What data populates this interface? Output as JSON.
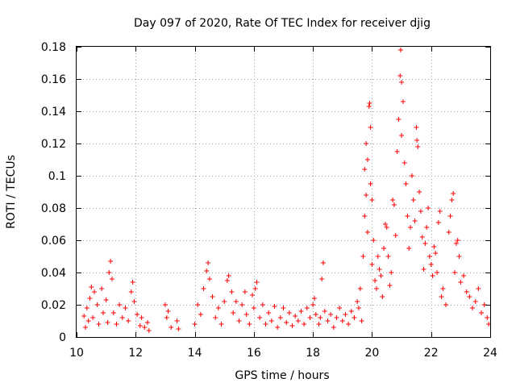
{
  "chart_data": {
    "type": "scatter",
    "title": "Day 097 of 2020, Rate Of TEC Index for receiver djig",
    "xlabel": "GPS time / hours",
    "ylabel": "ROTI / TECUs",
    "xlim": [
      10,
      24
    ],
    "ylim": [
      0,
      0.18
    ],
    "grid": true,
    "marker": "+",
    "x_ticks": [
      10,
      12,
      14,
      16,
      18,
      20,
      22,
      24
    ],
    "x_tick_labels": [
      "10",
      "12",
      "14",
      "16",
      "18",
      "20",
      "22",
      "24"
    ],
    "y_ticks": [
      0,
      0.02,
      0.04,
      0.06,
      0.08,
      0.1,
      0.12,
      0.14,
      0.16,
      0.18
    ],
    "y_tick_labels": [
      "0",
      "0.02",
      "0.04",
      "0.06",
      "0.08",
      "0.1",
      "0.12",
      "0.14",
      "0.16",
      "0.18"
    ],
    "series": [
      {
        "name": "ROTI",
        "color": "#ff0000",
        "points": [
          [
            10.25,
            0.013
          ],
          [
            10.3,
            0.006
          ],
          [
            10.35,
            0.018
          ],
          [
            10.4,
            0.01
          ],
          [
            10.45,
            0.024
          ],
          [
            10.5,
            0.031
          ],
          [
            10.55,
            0.012
          ],
          [
            10.6,
            0.028
          ],
          [
            10.7,
            0.02
          ],
          [
            10.75,
            0.008
          ],
          [
            10.85,
            0.03
          ],
          [
            10.9,
            0.015
          ],
          [
            11.0,
            0.023
          ],
          [
            11.05,
            0.009
          ],
          [
            11.1,
            0.04
          ],
          [
            11.15,
            0.047
          ],
          [
            11.2,
            0.036
          ],
          [
            11.25,
            0.015
          ],
          [
            11.35,
            0.008
          ],
          [
            11.45,
            0.02
          ],
          [
            11.55,
            0.012
          ],
          [
            11.65,
            0.018
          ],
          [
            11.75,
            0.01
          ],
          [
            11.85,
            0.028
          ],
          [
            11.9,
            0.034
          ],
          [
            11.95,
            0.022
          ],
          [
            12.05,
            0.014
          ],
          [
            12.15,
            0.007
          ],
          [
            12.2,
            0.012
          ],
          [
            12.3,
            0.006
          ],
          [
            12.4,
            0.009
          ],
          [
            12.45,
            0.004
          ],
          [
            13.0,
            0.02
          ],
          [
            13.05,
            0.012
          ],
          [
            13.1,
            0.016
          ],
          [
            13.2,
            0.006
          ],
          [
            13.4,
            0.01
          ],
          [
            13.45,
            0.005
          ],
          [
            14.0,
            0.008
          ],
          [
            14.1,
            0.02
          ],
          [
            14.2,
            0.014
          ],
          [
            14.3,
            0.03
          ],
          [
            14.4,
            0.041
          ],
          [
            14.45,
            0.046
          ],
          [
            14.5,
            0.036
          ],
          [
            14.6,
            0.025
          ],
          [
            14.7,
            0.012
          ],
          [
            14.8,
            0.018
          ],
          [
            14.9,
            0.008
          ],
          [
            15.0,
            0.022
          ],
          [
            15.1,
            0.035
          ],
          [
            15.15,
            0.038
          ],
          [
            15.25,
            0.028
          ],
          [
            15.3,
            0.015
          ],
          [
            15.4,
            0.022
          ],
          [
            15.5,
            0.01
          ],
          [
            15.6,
            0.02
          ],
          [
            15.7,
            0.028
          ],
          [
            15.75,
            0.014
          ],
          [
            15.85,
            0.008
          ],
          [
            15.95,
            0.026
          ],
          [
            16.0,
            0.018
          ],
          [
            16.05,
            0.03
          ],
          [
            16.1,
            0.034
          ],
          [
            16.2,
            0.012
          ],
          [
            16.3,
            0.02
          ],
          [
            16.4,
            0.008
          ],
          [
            16.5,
            0.015
          ],
          [
            16.6,
            0.01
          ],
          [
            16.7,
            0.019
          ],
          [
            16.8,
            0.006
          ],
          [
            16.9,
            0.012
          ],
          [
            17.0,
            0.018
          ],
          [
            17.1,
            0.009
          ],
          [
            17.2,
            0.015
          ],
          [
            17.3,
            0.007
          ],
          [
            17.4,
            0.013
          ],
          [
            17.5,
            0.01
          ],
          [
            17.6,
            0.016
          ],
          [
            17.7,
            0.008
          ],
          [
            17.8,
            0.018
          ],
          [
            17.9,
            0.012
          ],
          [
            18.0,
            0.02
          ],
          [
            18.05,
            0.024
          ],
          [
            18.1,
            0.014
          ],
          [
            18.2,
            0.008
          ],
          [
            18.25,
            0.012
          ],
          [
            18.3,
            0.036
          ],
          [
            18.35,
            0.046
          ],
          [
            18.4,
            0.016
          ],
          [
            18.5,
            0.01
          ],
          [
            18.6,
            0.014
          ],
          [
            18.7,
            0.006
          ],
          [
            18.8,
            0.012
          ],
          [
            18.9,
            0.018
          ],
          [
            19.0,
            0.01
          ],
          [
            19.1,
            0.014
          ],
          [
            19.2,
            0.008
          ],
          [
            19.3,
            0.016
          ],
          [
            19.4,
            0.012
          ],
          [
            19.5,
            0.022
          ],
          [
            19.55,
            0.018
          ],
          [
            19.6,
            0.03
          ],
          [
            19.65,
            0.01
          ],
          [
            19.7,
            0.05
          ],
          [
            19.75,
            0.075
          ],
          [
            19.75,
            0.104
          ],
          [
            19.8,
            0.12
          ],
          [
            19.8,
            0.088
          ],
          [
            19.85,
            0.11
          ],
          [
            19.85,
            0.065
          ],
          [
            19.9,
            0.143
          ],
          [
            19.92,
            0.145
          ],
          [
            19.95,
            0.13
          ],
          [
            19.95,
            0.095
          ],
          [
            20.0,
            0.085
          ],
          [
            20.0,
            0.045
          ],
          [
            20.05,
            0.06
          ],
          [
            20.1,
            0.035
          ],
          [
            20.15,
            0.03
          ],
          [
            20.2,
            0.05
          ],
          [
            20.25,
            0.042
          ],
          [
            20.3,
            0.038
          ],
          [
            20.35,
            0.025
          ],
          [
            20.4,
            0.055
          ],
          [
            20.45,
            0.07
          ],
          [
            20.5,
            0.068
          ],
          [
            20.55,
            0.05
          ],
          [
            20.6,
            0.032
          ],
          [
            20.65,
            0.04
          ],
          [
            20.7,
            0.085
          ],
          [
            20.75,
            0.082
          ],
          [
            20.8,
            0.063
          ],
          [
            20.85,
            0.115
          ],
          [
            20.9,
            0.135
          ],
          [
            20.95,
            0.162
          ],
          [
            20.97,
            0.178
          ],
          [
            21.0,
            0.158
          ],
          [
            21.0,
            0.125
          ],
          [
            21.05,
            0.146
          ],
          [
            21.1,
            0.108
          ],
          [
            21.15,
            0.095
          ],
          [
            21.2,
            0.075
          ],
          [
            21.25,
            0.055
          ],
          [
            21.3,
            0.068
          ],
          [
            21.35,
            0.1
          ],
          [
            21.4,
            0.085
          ],
          [
            21.45,
            0.072
          ],
          [
            21.5,
            0.13
          ],
          [
            21.52,
            0.122
          ],
          [
            21.55,
            0.118
          ],
          [
            21.6,
            0.09
          ],
          [
            21.65,
            0.078
          ],
          [
            21.7,
            0.062
          ],
          [
            21.75,
            0.042
          ],
          [
            21.8,
            0.058
          ],
          [
            21.85,
            0.068
          ],
          [
            21.9,
            0.08
          ],
          [
            21.95,
            0.05
          ],
          [
            22.0,
            0.045
          ],
          [
            22.05,
            0.038
          ],
          [
            22.1,
            0.056
          ],
          [
            22.15,
            0.052
          ],
          [
            22.2,
            0.04
          ],
          [
            22.25,
            0.071
          ],
          [
            22.3,
            0.078
          ],
          [
            22.35,
            0.025
          ],
          [
            22.4,
            0.03
          ],
          [
            22.5,
            0.02
          ],
          [
            22.6,
            0.065
          ],
          [
            22.65,
            0.075
          ],
          [
            22.7,
            0.085
          ],
          [
            22.75,
            0.089
          ],
          [
            22.8,
            0.04
          ],
          [
            22.85,
            0.058
          ],
          [
            22.9,
            0.06
          ],
          [
            22.95,
            0.05
          ],
          [
            23.0,
            0.034
          ],
          [
            23.1,
            0.038
          ],
          [
            23.2,
            0.028
          ],
          [
            23.3,
            0.025
          ],
          [
            23.4,
            0.018
          ],
          [
            23.5,
            0.022
          ],
          [
            23.6,
            0.03
          ],
          [
            23.7,
            0.015
          ],
          [
            23.8,
            0.02
          ],
          [
            23.9,
            0.012
          ],
          [
            23.95,
            0.008
          ]
        ]
      }
    ]
  }
}
